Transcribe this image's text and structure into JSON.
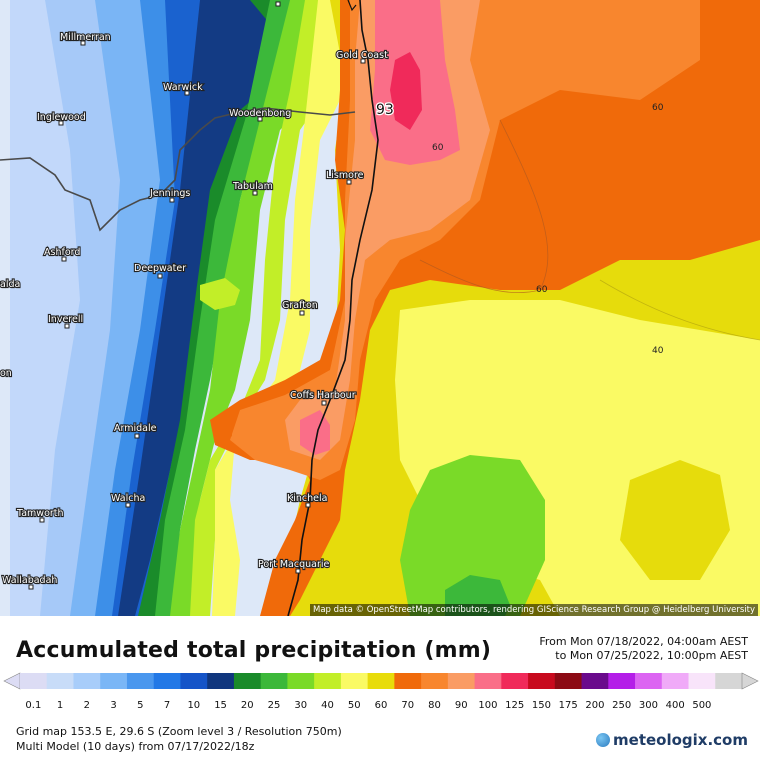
{
  "map": {
    "attribution": "Map data © OpenStreetMap contributors, rendering GIScience Research Group @ Heidelberg University",
    "max_value_label": "93",
    "contour_labels": [
      "60",
      "60",
      "60",
      "40"
    ],
    "towns": [
      {
        "name": "Millmerran"
      },
      {
        "name": "Warwick"
      },
      {
        "name": "Gold Coast"
      },
      {
        "name": "Inglewood"
      },
      {
        "name": "Woodenbong"
      },
      {
        "name": "Lismore"
      },
      {
        "name": "Tabulam"
      },
      {
        "name": "Jennings"
      },
      {
        "name": "Ashford"
      },
      {
        "name": "Deepwater"
      },
      {
        "name": "Grafton"
      },
      {
        "name": "Inverell"
      },
      {
        "name": "Coffs Harbour"
      },
      {
        "name": "Armidale"
      },
      {
        "name": "Walcha"
      },
      {
        "name": "Kinchela"
      },
      {
        "name": "Tamworth"
      },
      {
        "name": "Port Macquarie"
      },
      {
        "name": "Wallabadah"
      },
      {
        "name": "alda"
      },
      {
        "name": "on"
      }
    ]
  },
  "title": "Accumulated total precipitation (mm)",
  "date_from": "From Mon 07/18/2022, 04:00am AEST",
  "date_to": "to Mon 07/25/2022, 10:00pm AEST",
  "legend": {
    "labels": [
      "0.1",
      "1",
      "2",
      "3",
      "5",
      "7",
      "10",
      "15",
      "20",
      "25",
      "30",
      "40",
      "50",
      "60",
      "70",
      "80",
      "90",
      "100",
      "125",
      "150",
      "175",
      "200",
      "250",
      "300",
      "400",
      "500"
    ],
    "colors": [
      "#dcdcf4",
      "#c8dcf8",
      "#a8cdfa",
      "#7ab6f6",
      "#4a97ee",
      "#2278e6",
      "#1554c8",
      "#10367e",
      "#1a8b2a",
      "#3cb83a",
      "#7ada28",
      "#c2ee28",
      "#fafa64",
      "#e8dc0a",
      "#f06a0a",
      "#f8862e",
      "#fa9c64",
      "#fa6e88",
      "#f02a5a",
      "#c80a1e",
      "#8c0a14",
      "#6a0a8c",
      "#b41ee8",
      "#dc64f2",
      "#f0aaf8",
      "#f8e4fa",
      "#d6d6d6"
    ]
  },
  "footer": {
    "line1": "Grid map 153.5 E, 29.6 S (Zoom level 3 / Resolution 750m)",
    "line2": "Multi Model (10 days)  from  07/17/2022/18z"
  },
  "logo": "meteologix.com"
}
